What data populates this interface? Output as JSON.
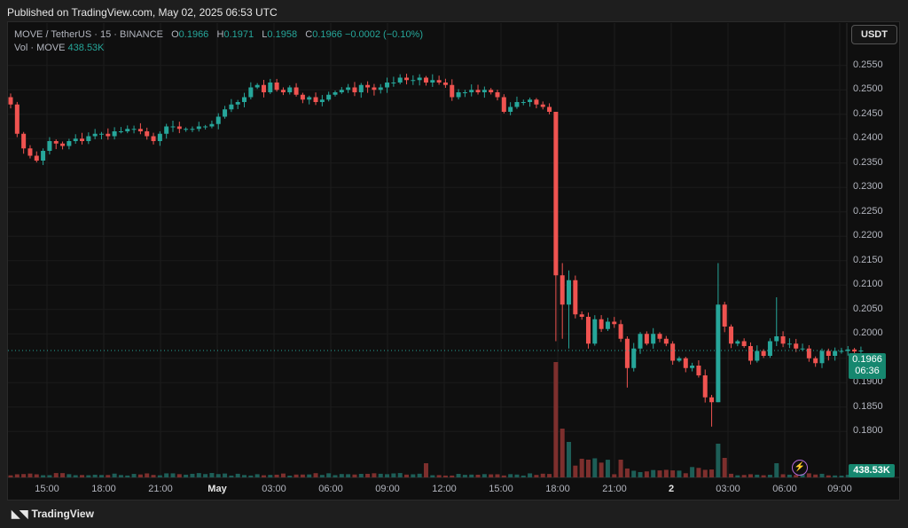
{
  "published": "Published on TradingView.com, May 02, 2025 06:53 UTC",
  "legend": {
    "symbol": "MOVE / TetherUS · 15 · BINANCE",
    "o_label": "O",
    "o": "0.1966",
    "h_label": "H",
    "h": "0.1971",
    "l_label": "L",
    "l": "0.1958",
    "c_label": "C",
    "c": "0.1966",
    "change": "−0.0002 (−0.10%)",
    "vol_label": "Vol · MOVE",
    "vol": "438.53K"
  },
  "unit": "USDT",
  "last_price": "0.1966",
  "countdown": "06:36",
  "volume_tag": "438.53K",
  "brand": "TradingView",
  "colors": {
    "up": "#26a69a",
    "down": "#ef5350",
    "background": "#0f0f0f"
  },
  "chart_data": {
    "type": "candlestick",
    "y_ticks": [
      "0.2550",
      "0.2500",
      "0.2450",
      "0.2400",
      "0.2350",
      "0.2300",
      "0.2250",
      "0.2200",
      "0.2150",
      "0.2100",
      "0.2050",
      "0.2000",
      "0.1950",
      "0.1900",
      "0.1850",
      "0.1800"
    ],
    "x_ticks": [
      {
        "label": "15:00",
        "bold": false
      },
      {
        "label": "18:00",
        "bold": false
      },
      {
        "label": "21:00",
        "bold": false
      },
      {
        "label": "May",
        "bold": true
      },
      {
        "label": "03:00",
        "bold": false
      },
      {
        "label": "06:00",
        "bold": false
      },
      {
        "label": "09:00",
        "bold": false
      },
      {
        "label": "12:00",
        "bold": false
      },
      {
        "label": "15:00",
        "bold": false
      },
      {
        "label": "18:00",
        "bold": false
      },
      {
        "label": "21:00",
        "bold": false
      },
      {
        "label": "2",
        "bold": true
      },
      {
        "label": "03:00",
        "bold": false
      },
      {
        "label": "06:00",
        "bold": false
      },
      {
        "label": "09:00",
        "bold": false
      }
    ],
    "ylim": [
      0.1775,
      0.2575
    ],
    "close_path": [
      [
        0,
        0.247
      ],
      [
        1,
        0.241
      ],
      [
        2,
        0.238
      ],
      [
        3,
        0.2365
      ],
      [
        4,
        0.2355
      ],
      [
        5,
        0.2375
      ],
      [
        6,
        0.2395
      ],
      [
        7,
        0.239
      ],
      [
        8,
        0.2385
      ],
      [
        9,
        0.2395
      ],
      [
        10,
        0.24
      ],
      [
        11,
        0.2395
      ],
      [
        12,
        0.2405
      ],
      [
        13,
        0.241
      ],
      [
        14,
        0.241
      ],
      [
        15,
        0.2405
      ],
      [
        16,
        0.2415
      ],
      [
        17,
        0.2415
      ],
      [
        18,
        0.242
      ],
      [
        19,
        0.242
      ],
      [
        20,
        0.2415
      ],
      [
        21,
        0.2405
      ],
      [
        22,
        0.2395
      ],
      [
        23,
        0.241
      ],
      [
        24,
        0.2425
      ],
      [
        25,
        0.2425
      ],
      [
        26,
        0.242
      ],
      [
        27,
        0.242
      ],
      [
        28,
        0.242
      ],
      [
        29,
        0.2425
      ],
      [
        30,
        0.2425
      ],
      [
        31,
        0.243
      ],
      [
        32,
        0.2445
      ],
      [
        33,
        0.246
      ],
      [
        34,
        0.247
      ],
      [
        35,
        0.2475
      ],
      [
        36,
        0.2485
      ],
      [
        37,
        0.2505
      ],
      [
        38,
        0.251
      ],
      [
        39,
        0.2495
      ],
      [
        40,
        0.2515
      ],
      [
        41,
        0.25
      ],
      [
        42,
        0.2495
      ],
      [
        43,
        0.2505
      ],
      [
        44,
        0.249
      ],
      [
        45,
        0.248
      ],
      [
        46,
        0.2485
      ],
      [
        47,
        0.2475
      ],
      [
        48,
        0.248
      ],
      [
        49,
        0.249
      ],
      [
        50,
        0.2495
      ],
      [
        51,
        0.25
      ],
      [
        52,
        0.2505
      ],
      [
        53,
        0.2495
      ],
      [
        54,
        0.251
      ],
      [
        55,
        0.2505
      ],
      [
        56,
        0.25
      ],
      [
        57,
        0.2505
      ],
      [
        58,
        0.2515
      ],
      [
        59,
        0.2515
      ],
      [
        60,
        0.2525
      ],
      [
        61,
        0.252
      ],
      [
        62,
        0.252
      ],
      [
        63,
        0.2525
      ],
      [
        64,
        0.2515
      ],
      [
        65,
        0.252
      ],
      [
        66,
        0.2515
      ],
      [
        67,
        0.251
      ],
      [
        68,
        0.2485
      ],
      [
        69,
        0.2495
      ],
      [
        70,
        0.2495
      ],
      [
        71,
        0.25
      ],
      [
        72,
        0.2495
      ],
      [
        73,
        0.25
      ],
      [
        74,
        0.2495
      ],
      [
        75,
        0.2485
      ],
      [
        76,
        0.2455
      ],
      [
        77,
        0.2465
      ],
      [
        78,
        0.2475
      ],
      [
        79,
        0.2475
      ],
      [
        80,
        0.248
      ],
      [
        81,
        0.247
      ],
      [
        82,
        0.2465
      ],
      [
        83,
        0.2455
      ],
      [
        84,
        0.212
      ],
      [
        85,
        0.206
      ],
      [
        86,
        0.211
      ],
      [
        87,
        0.204
      ],
      [
        88,
        0.2035
      ],
      [
        89,
        0.198
      ],
      [
        90,
        0.203
      ],
      [
        91,
        0.201
      ],
      [
        92,
        0.2025
      ],
      [
        93,
        0.202
      ],
      [
        94,
        0.199
      ],
      [
        95,
        0.193
      ],
      [
        96,
        0.197
      ],
      [
        97,
        0.2
      ],
      [
        98,
        0.198
      ],
      [
        99,
        0.2
      ],
      [
        100,
        0.199
      ],
      [
        101,
        0.198
      ],
      [
        102,
        0.1945
      ],
      [
        103,
        0.195
      ],
      [
        104,
        0.193
      ],
      [
        105,
        0.1935
      ],
      [
        106,
        0.1915
      ],
      [
        107,
        0.187
      ],
      [
        108,
        0.186
      ],
      [
        109,
        0.206
      ],
      [
        110,
        0.2015
      ],
      [
        111,
        0.198
      ],
      [
        112,
        0.1985
      ],
      [
        113,
        0.1975
      ],
      [
        114,
        0.1945
      ],
      [
        115,
        0.1965
      ],
      [
        116,
        0.1955
      ],
      [
        117,
        0.1985
      ],
      [
        118,
        0.1995
      ],
      [
        119,
        0.198
      ],
      [
        120,
        0.198
      ],
      [
        121,
        0.197
      ],
      [
        122,
        0.197
      ],
      [
        123,
        0.195
      ],
      [
        124,
        0.194
      ],
      [
        125,
        0.1965
      ],
      [
        126,
        0.1955
      ],
      [
        127,
        0.1965
      ],
      [
        128,
        0.1965
      ],
      [
        129,
        0.1968
      ],
      [
        130,
        0.1964
      ],
      [
        131,
        0.1966
      ]
    ]
  }
}
